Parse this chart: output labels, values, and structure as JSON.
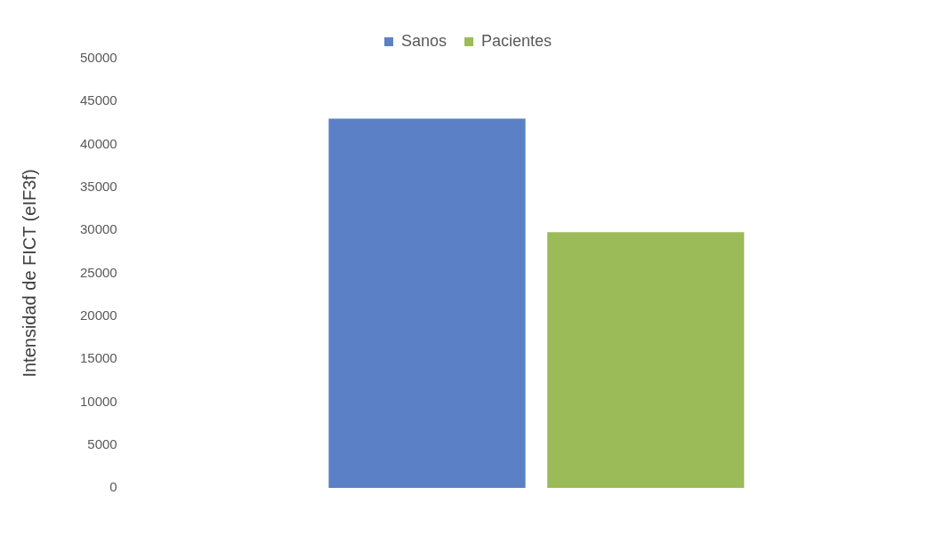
{
  "chart_data": {
    "type": "bar",
    "ylabel": "Intensidad de FICT (eIF3f)",
    "categories": [
      null
    ],
    "series": [
      {
        "name": "Sanos",
        "color": "#5b80c6",
        "values": [
          43000
        ]
      },
      {
        "name": "Pacientes",
        "color": "#9bbb59",
        "values": [
          29800
        ]
      }
    ],
    "ylim": [
      0,
      50000
    ],
    "yticks": [
      0,
      5000,
      10000,
      15000,
      20000,
      25000,
      30000,
      35000,
      40000,
      45000,
      50000
    ],
    "grid": false,
    "legend": "top",
    "tick_labels": "y"
  }
}
